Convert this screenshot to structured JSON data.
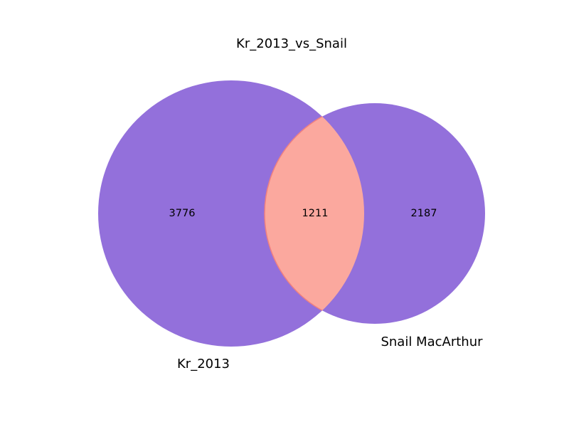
{
  "chart_data": {
    "type": "venn",
    "title": "Kr_2013_vs_Snail",
    "sets": [
      {
        "name": "Kr_2013",
        "only": 3776
      },
      {
        "name": "Snail MacArthur",
        "only": 2187
      }
    ],
    "intersection": 1211,
    "colors": {
      "set_fill": "#9370db",
      "intersection_fill": "#fba89e",
      "intersection_stroke": "#f08080"
    }
  }
}
